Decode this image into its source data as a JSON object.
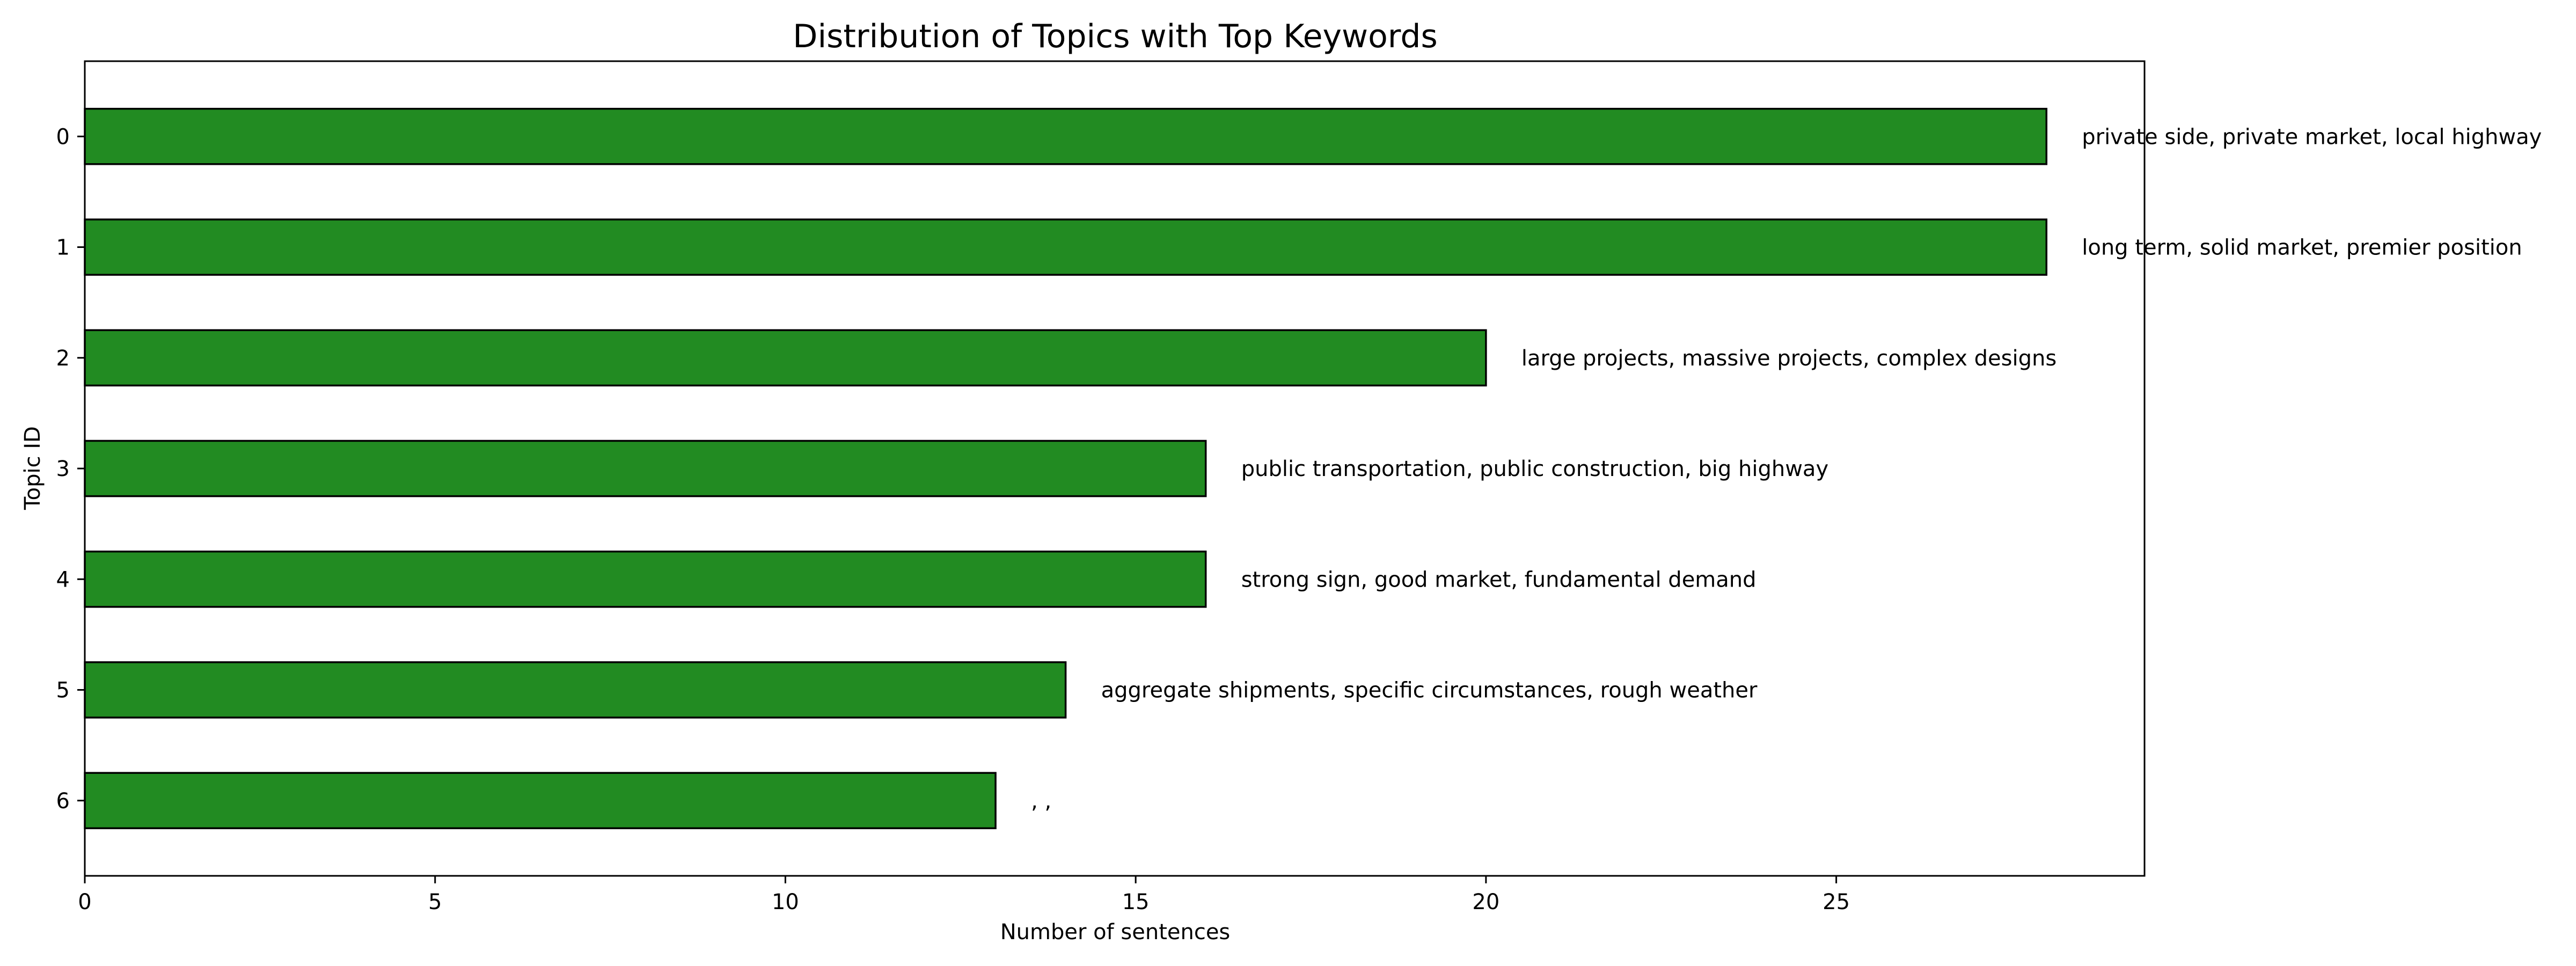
{
  "chart_data": {
    "type": "bar",
    "orientation": "horizontal",
    "title": "Distribution of Topics with Top Keywords",
    "xlabel": "Number of sentences",
    "ylabel": "Topic ID",
    "categories": [
      "0",
      "1",
      "2",
      "3",
      "4",
      "5",
      "6"
    ],
    "values": [
      28,
      28,
      20,
      16,
      16,
      14,
      13
    ],
    "bar_labels": [
      "private side, private market, local highway",
      "long term, solid market, premier position",
      "large projects, massive projects, complex designs",
      "public transportation, public construction, big highway",
      "strong sign, good market, fundamental demand",
      "aggregate shipments, specific circumstances, rough weather",
      ", ,"
    ],
    "xlim": [
      0,
      29.4
    ],
    "xticks": [
      0,
      5,
      10,
      15,
      20,
      25
    ],
    "grid": false,
    "legend": "none",
    "bar_color": "#228b22",
    "edge_color": "#000000"
  }
}
